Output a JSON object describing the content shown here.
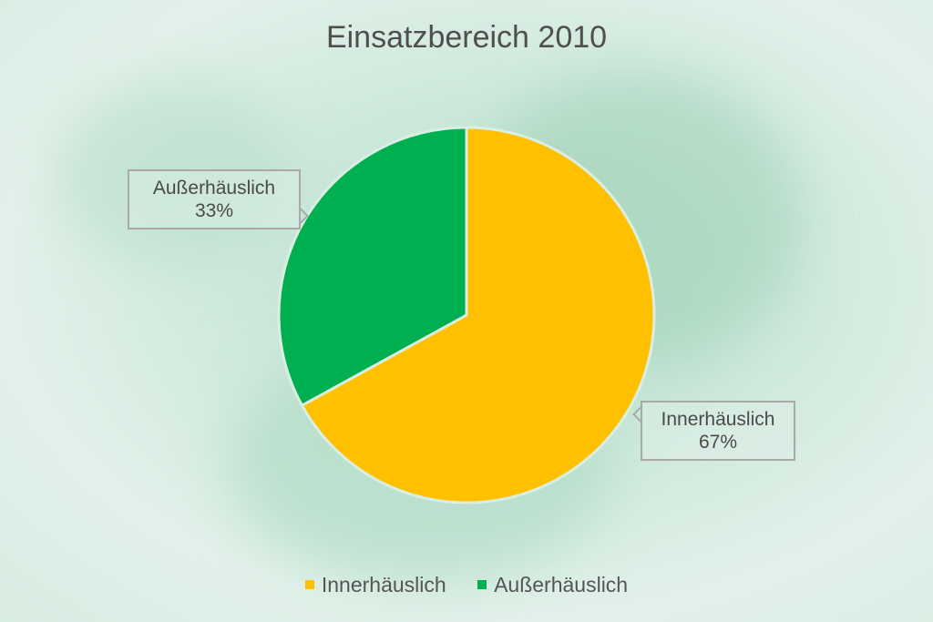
{
  "chart_data": {
    "type": "pie",
    "title": "Einsatzbereich 2010",
    "categories": [
      "Innerhäuslich",
      "Außerhäuslich"
    ],
    "values": [
      67,
      33
    ],
    "data_labels": [
      {
        "category": "Innerhäuslich",
        "percent": "67%"
      },
      {
        "category": "Außerhäuslich",
        "percent": "33%"
      }
    ],
    "colors": [
      "#ffc000",
      "#00b050"
    ],
    "legend_position": "bottom"
  }
}
